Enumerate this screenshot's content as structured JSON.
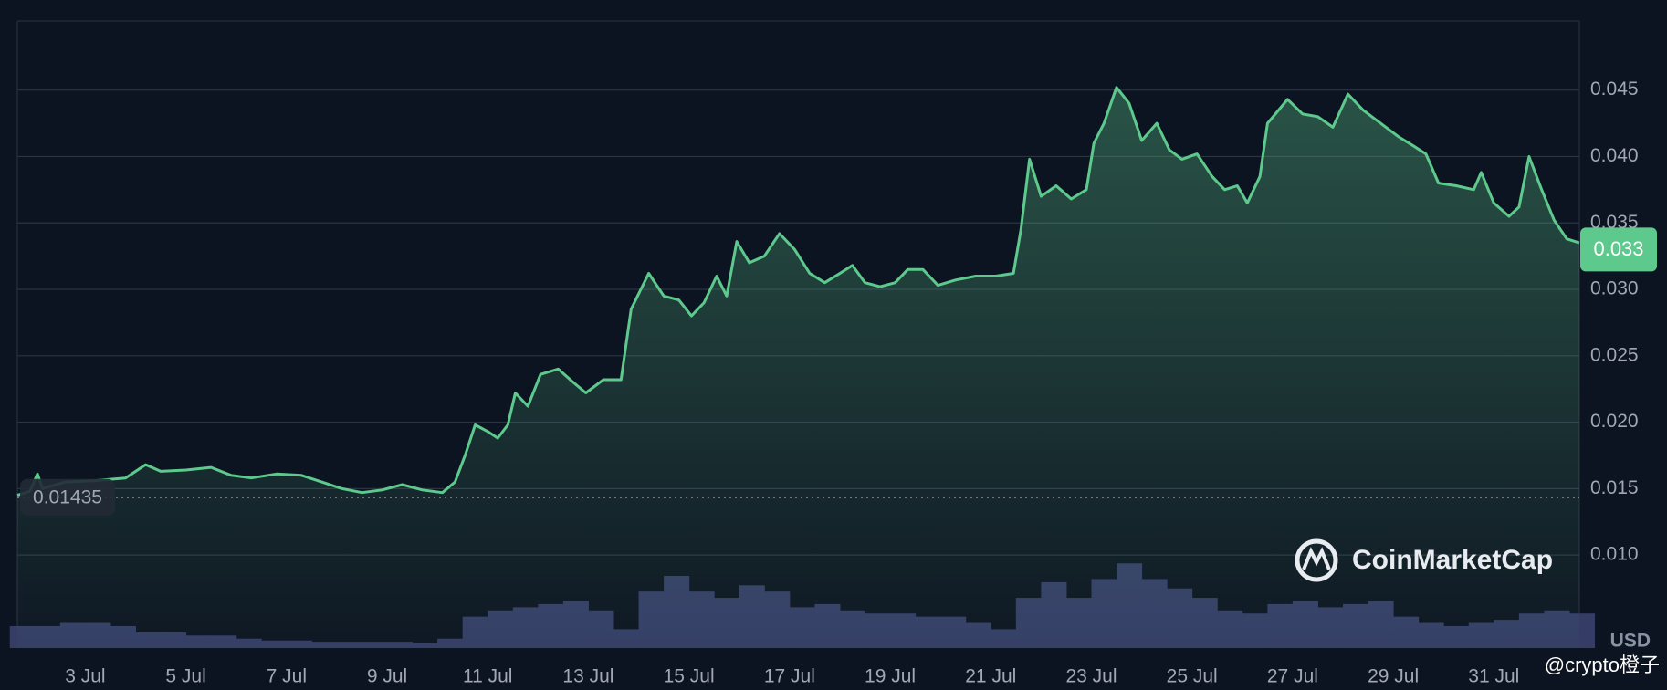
{
  "chart_data": {
    "type": "line",
    "x": [
      1.65,
      1.9,
      2.05,
      2.15,
      2.6,
      3.2,
      3.8,
      4.2,
      4.5,
      5.0,
      5.5,
      5.9,
      6.3,
      6.8,
      7.3,
      7.7,
      8.1,
      8.5,
      8.9,
      9.3,
      9.7,
      10.1,
      10.35,
      10.55,
      10.75,
      11.0,
      11.2,
      11.4,
      11.55,
      11.8,
      12.05,
      12.4,
      12.7,
      12.95,
      13.3,
      13.65,
      13.85,
      14.2,
      14.5,
      14.8,
      15.05,
      15.3,
      15.55,
      15.75,
      15.95,
      16.2,
      16.5,
      16.8,
      17.1,
      17.4,
      17.7,
      18.0,
      18.25,
      18.5,
      18.8,
      19.1,
      19.35,
      19.65,
      19.95,
      20.3,
      20.7,
      21.1,
      21.45,
      21.6,
      21.77,
      22.0,
      22.3,
      22.6,
      22.9,
      23.05,
      23.25,
      23.5,
      23.75,
      24.0,
      24.3,
      24.55,
      24.8,
      25.1,
      25.4,
      25.65,
      25.9,
      26.1,
      26.35,
      26.5,
      26.9,
      27.2,
      27.5,
      27.8,
      28.1,
      28.4,
      28.75,
      29.1,
      29.4,
      29.65,
      29.9,
      30.25,
      30.6,
      30.75,
      31.0,
      31.3,
      31.5,
      31.7,
      31.95,
      32.2,
      32.45,
      32.7
    ],
    "series": [
      {
        "color": "#5ec98d",
        "values": [
          0.0145,
          0.0148,
          0.0161,
          0.015,
          0.0155,
          0.0156,
          0.0158,
          0.0168,
          0.0163,
          0.0164,
          0.0166,
          0.016,
          0.0158,
          0.0161,
          0.016,
          0.0155,
          0.015,
          0.0147,
          0.0149,
          0.0153,
          0.0149,
          0.0147,
          0.0155,
          0.0175,
          0.0198,
          0.0193,
          0.0188,
          0.0198,
          0.0222,
          0.0212,
          0.0236,
          0.024,
          0.023,
          0.0222,
          0.0232,
          0.0232,
          0.0285,
          0.0312,
          0.0295,
          0.0292,
          0.028,
          0.029,
          0.031,
          0.0295,
          0.0336,
          0.032,
          0.0325,
          0.0342,
          0.033,
          0.0312,
          0.0305,
          0.0312,
          0.0318,
          0.0305,
          0.0302,
          0.0305,
          0.0315,
          0.0315,
          0.0303,
          0.0307,
          0.031,
          0.031,
          0.0312,
          0.0345,
          0.0398,
          0.037,
          0.0378,
          0.0368,
          0.0375,
          0.041,
          0.0425,
          0.0452,
          0.044,
          0.0412,
          0.0425,
          0.0405,
          0.0398,
          0.0402,
          0.0385,
          0.0375,
          0.0378,
          0.0365,
          0.0385,
          0.0425,
          0.0443,
          0.0432,
          0.043,
          0.0422,
          0.0447,
          0.0435,
          0.0425,
          0.0415,
          0.0408,
          0.0402,
          0.038,
          0.0378,
          0.0375,
          0.0388,
          0.0365,
          0.0355,
          0.0362,
          0.04,
          0.0375,
          0.0352,
          0.0338,
          0.0335
        ]
      },
      {
        "color": "#353d66",
        "axis": "y2",
        "x": [
          1.75,
          2.25,
          2.75,
          3.25,
          3.75,
          4.25,
          4.75,
          5.25,
          5.75,
          6.25,
          6.75,
          7.25,
          7.75,
          8.25,
          8.75,
          9.25,
          9.75,
          10.25,
          10.75,
          11.25,
          11.75,
          12.25,
          12.75,
          13.25,
          13.75,
          14.25,
          14.75,
          15.25,
          15.75,
          16.25,
          16.75,
          17.25,
          17.75,
          18.25,
          18.75,
          19.25,
          19.75,
          20.25,
          20.75,
          21.25,
          21.75,
          22.25,
          22.75,
          23.25,
          23.75,
          24.25,
          24.75,
          25.25,
          25.75,
          26.25,
          26.75,
          27.25,
          27.75,
          28.25,
          28.75,
          29.25,
          29.75,
          30.25,
          30.75,
          31.25,
          31.75,
          32.25,
          32.75
        ],
        "values": [
          3.5,
          3.5,
          4,
          4,
          3.5,
          2.5,
          2.5,
          2,
          2,
          1.5,
          1.2,
          1.2,
          1,
          1,
          1,
          1,
          0.8,
          1.5,
          5,
          6,
          6.5,
          7,
          7.5,
          6,
          3,
          9,
          11.5,
          9,
          8,
          10,
          9,
          6.5,
          7,
          6,
          5.5,
          5.5,
          5,
          5,
          4,
          3,
          8,
          10.5,
          8,
          11,
          13.5,
          11,
          9.5,
          8,
          6,
          5.5,
          7,
          7.5,
          6.5,
          7,
          7.5,
          5,
          4,
          3.5,
          4,
          4.5,
          5.5,
          6,
          5.5
        ]
      }
    ],
    "xlim": [
      1.65,
      32.7
    ],
    "xticks": [
      {
        "value": 3,
        "label": "3 Jul"
      },
      {
        "value": 5,
        "label": "5 Jul"
      },
      {
        "value": 7,
        "label": "7 Jul"
      },
      {
        "value": 9,
        "label": "9 Jul"
      },
      {
        "value": 11,
        "label": "11 Jul"
      },
      {
        "value": 13,
        "label": "13 Jul"
      },
      {
        "value": 15,
        "label": "15 Jul"
      },
      {
        "value": 17,
        "label": "17 Jul"
      },
      {
        "value": 19,
        "label": "19 Jul"
      },
      {
        "value": 21,
        "label": "21 Jul"
      },
      {
        "value": 23,
        "label": "23 Jul"
      },
      {
        "value": 25,
        "label": "25 Jul"
      },
      {
        "value": 27,
        "label": "27 Jul"
      },
      {
        "value": 29,
        "label": "29 Jul"
      },
      {
        "value": 31,
        "label": "31 Jul"
      }
    ],
    "ylim": [
      0.003,
      0.0502
    ],
    "yticks": [
      {
        "value": 0.01,
        "label": "0.010"
      },
      0.015,
      {
        "value": 0.02,
        "label": "0.020"
      },
      0.025,
      {
        "value": 0.03,
        "label": "0.030"
      },
      0.035,
      {
        "value": 0.04,
        "label": "0.040"
      },
      0.045
    ],
    "y2lim": [
      0,
      100
    ],
    "grid": true,
    "reference_value": 0.01435,
    "current_value": 0.033,
    "unit_label": "USD",
    "watermark": "CoinMarketCap",
    "credit": "@crypto橙子"
  }
}
